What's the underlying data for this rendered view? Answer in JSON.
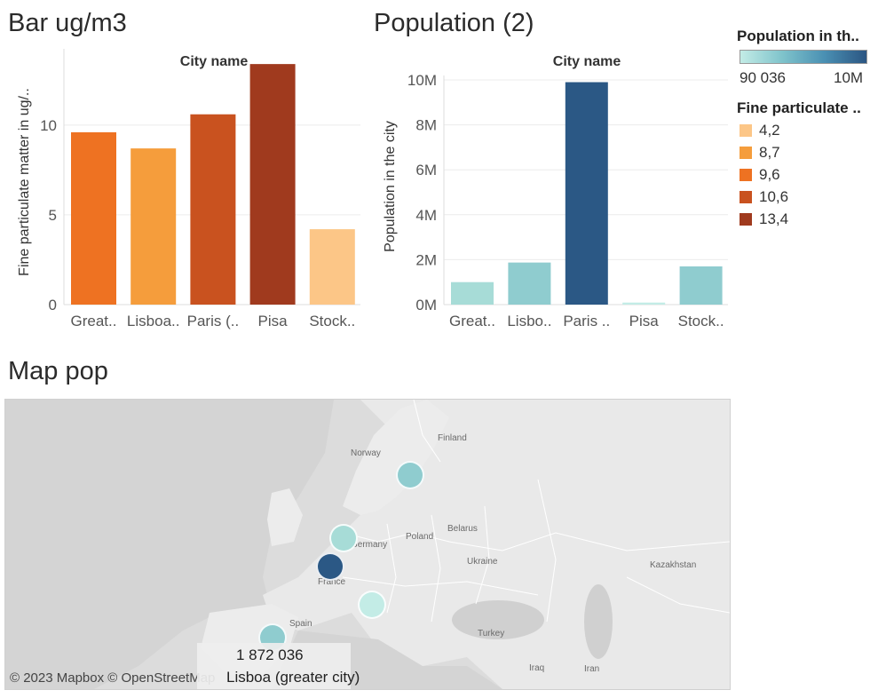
{
  "chart_data": [
    {
      "type": "bar",
      "title": "Bar ug/m3",
      "header": "City name",
      "ylabel": "Fine particulate matter in ug/..",
      "categories": [
        "Great..",
        "Lisboa..",
        "Paris (..",
        "Pisa",
        "Stock.."
      ],
      "values": [
        9.6,
        8.7,
        10.6,
        13.4,
        4.2
      ],
      "colors": [
        "#ee7222",
        "#f59d3c",
        "#c9521f",
        "#a03a1e",
        "#fcc687"
      ],
      "ylim": [
        0,
        14
      ],
      "yticks": [
        "0",
        "5",
        "10"
      ],
      "ytick_values": [
        0,
        5,
        10
      ],
      "grid": true
    },
    {
      "type": "bar",
      "title": "Population (2)",
      "header": "City name",
      "ylabel": "Population in the city",
      "categories": [
        "Great..",
        "Lisbo..",
        "Paris ..",
        "Pisa",
        "Stock.."
      ],
      "values": [
        1000000,
        1872036,
        9900000,
        90036,
        1700000
      ],
      "colors": [
        "#a7dcd7",
        "#8fcccf",
        "#2b5885",
        "#c3ece6",
        "#8fcccf"
      ],
      "ylim": [
        0,
        10000000
      ],
      "yticks": [
        "0M",
        "2M",
        "4M",
        "6M",
        "8M",
        "10M"
      ],
      "ytick_values": [
        0,
        2000000,
        4000000,
        6000000,
        8000000,
        10000000
      ],
      "grid": true
    }
  ],
  "legend": {
    "population_title": "Population in th..",
    "population_min": "90 036",
    "population_max": "10M",
    "fine_title": "Fine particulate ..",
    "fine_items": [
      {
        "label": "4,2",
        "color": "#fcc687"
      },
      {
        "label": "8,7",
        "color": "#f59d3c"
      },
      {
        "label": "9,6",
        "color": "#ee7222"
      },
      {
        "label": "10,6",
        "color": "#c9521f"
      },
      {
        "label": "13,4",
        "color": "#a03a1e"
      }
    ]
  },
  "map": {
    "title": "Map pop",
    "attribution": "© 2023 Mapbox © OpenStreetMap",
    "tooltip_value": "1 872 036",
    "tooltip_name": "Lisboa (greater city)",
    "country_labels": [
      "Finland",
      "Norway",
      "Poland",
      "Belarus",
      "Germany",
      "Ukraine",
      "Kazakhstan",
      "France",
      "Spain",
      "Turkey",
      "Iraq",
      "Iran"
    ],
    "marker_colors": [
      "#8fcccf",
      "#a7dcd7",
      "#2b5885",
      "#c3ece6",
      "#8fcccf"
    ]
  }
}
